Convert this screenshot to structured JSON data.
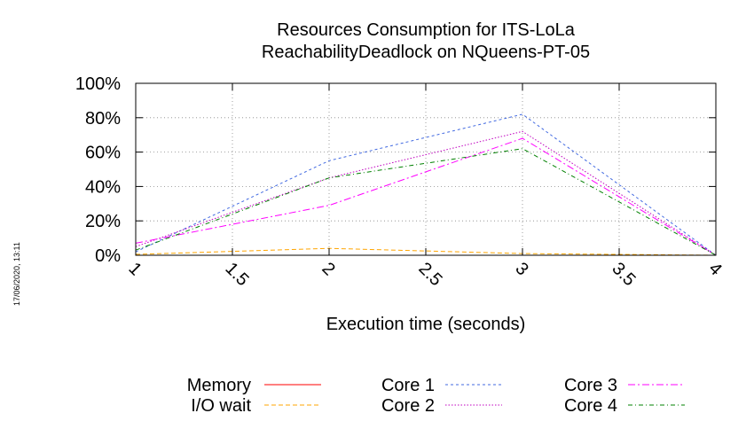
{
  "side_stamp": "17/06/2020, 13:11",
  "chart_data": {
    "type": "line",
    "title": [
      "Resources Consumption for ITS-LoLa",
      "ReachabilityDeadlock on NQueens-PT-05"
    ],
    "xlabel": "Execution time (seconds)",
    "ylabel": "",
    "xlim": [
      1,
      4
    ],
    "ylim": [
      0,
      100
    ],
    "x_ticks": [
      "1",
      "1.5",
      "2",
      "2.5",
      "3",
      "3.5",
      "4"
    ],
    "y_ticks": [
      "0%",
      "20%",
      "40%",
      "60%",
      "80%",
      "100%"
    ],
    "grid": true,
    "legend_position": "bottom",
    "series": [
      {
        "name": "Memory",
        "color": "#ff0000",
        "dash": "",
        "x": [
          1,
          2,
          3,
          4
        ],
        "y": [
          0,
          0,
          0,
          0
        ]
      },
      {
        "name": "I/O wait",
        "color": "#ffa500",
        "dash": "5,3",
        "x": [
          1,
          2,
          3,
          4
        ],
        "y": [
          0.5,
          4,
          1,
          0
        ]
      },
      {
        "name": "Core 1",
        "color": "#4169e1",
        "dash": "3,3",
        "x": [
          1,
          2,
          3,
          4
        ],
        "y": [
          2,
          55,
          82,
          0
        ]
      },
      {
        "name": "Core 2",
        "color": "#c000c0",
        "dash": "1.5,2",
        "x": [
          1,
          2,
          3,
          4
        ],
        "y": [
          5,
          45,
          72,
          0
        ]
      },
      {
        "name": "Core 3",
        "color": "#ff00ff",
        "dash": "8,3,2,3",
        "x": [
          1,
          2,
          3,
          4
        ],
        "y": [
          7,
          29,
          68,
          0
        ]
      },
      {
        "name": "Core 4",
        "color": "#008000",
        "dash": "5,3,1,3",
        "x": [
          1,
          2,
          3,
          4
        ],
        "y": [
          3,
          45,
          62,
          0
        ]
      }
    ]
  }
}
